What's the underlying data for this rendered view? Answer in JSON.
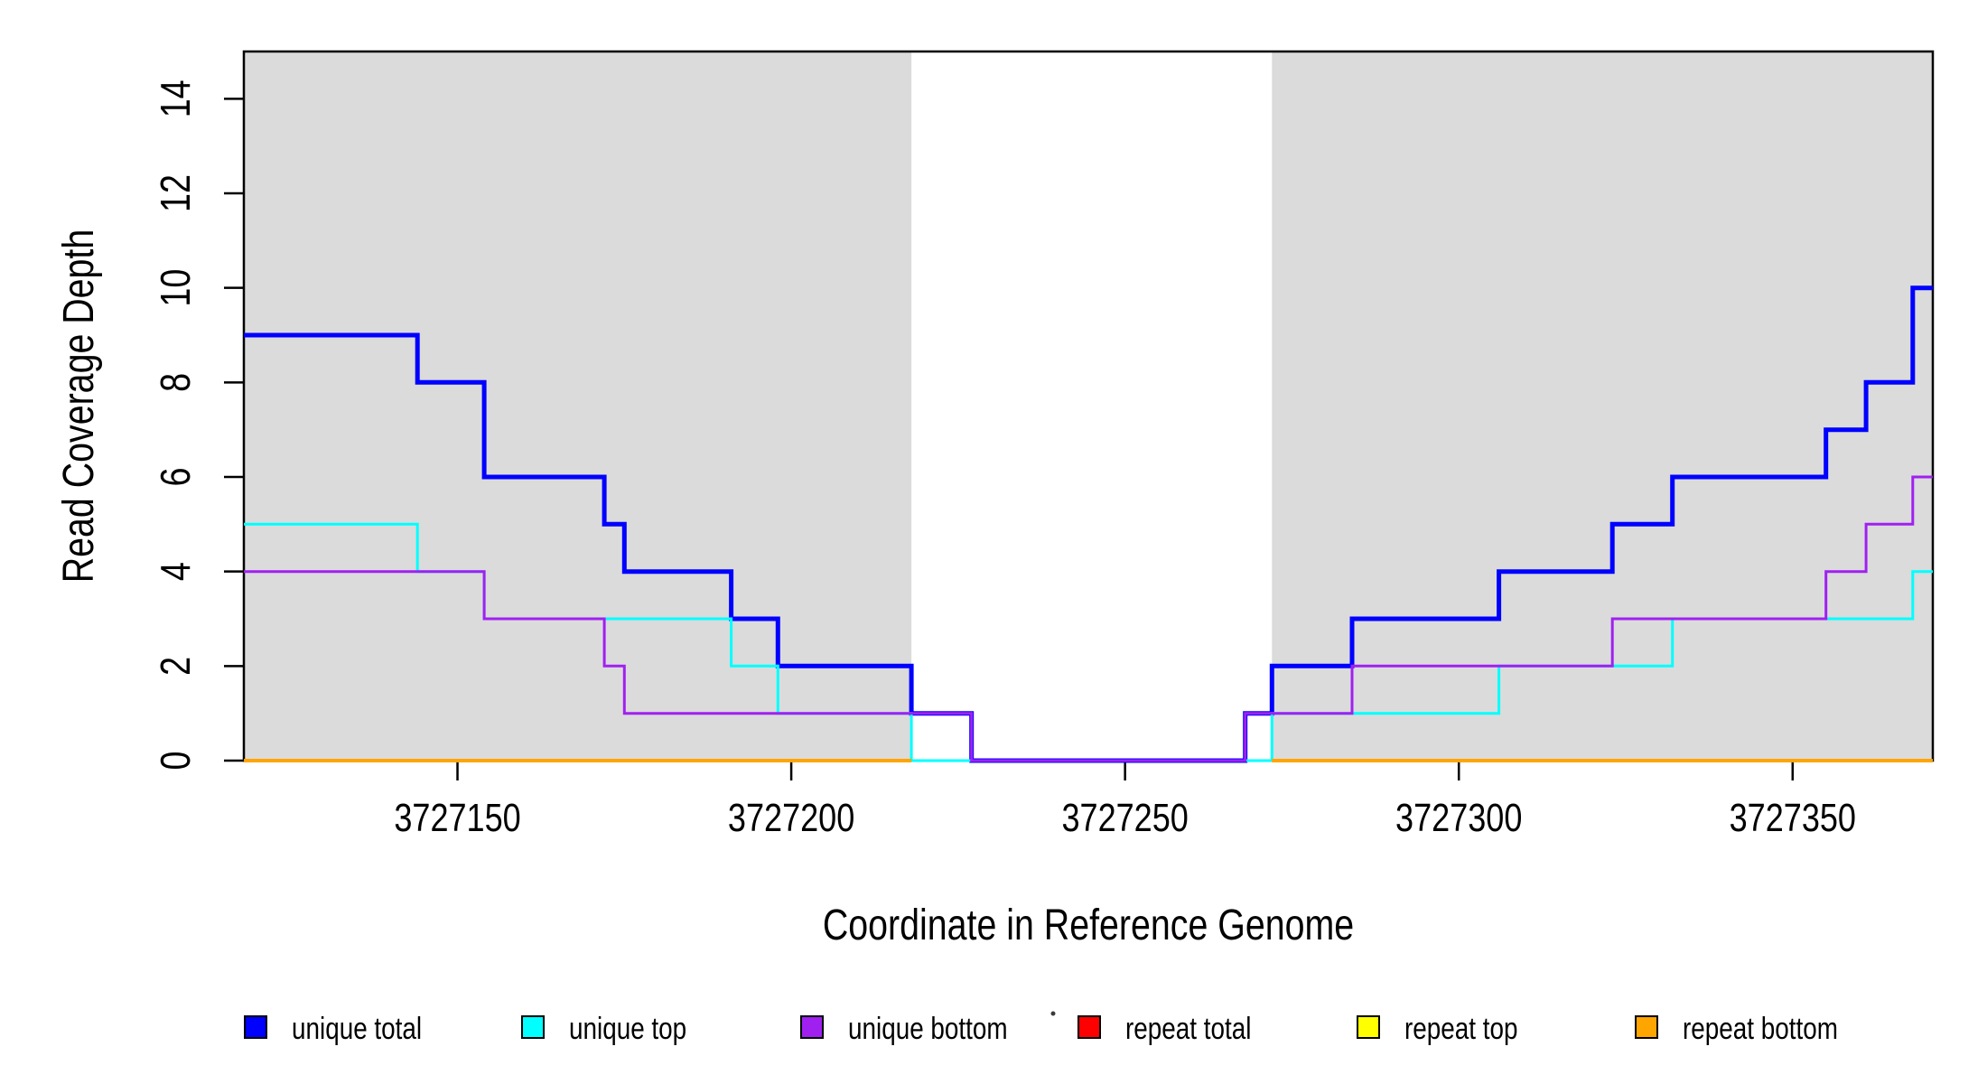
{
  "figure": {
    "background": "#ffffff",
    "panel_shade_color": "#dbdbdb",
    "frame_color": "#000000"
  },
  "axes": {
    "x": {
      "title": "Coordinate in Reference Genome",
      "ticks": [
        3727150,
        3727200,
        3727250,
        3727300,
        3727350
      ],
      "tick_labels": [
        "3727150",
        "3727200",
        "3727250",
        "3727300",
        "3727350"
      ]
    },
    "y": {
      "title": "Read Coverage Depth",
      "ticks": [
        0,
        2,
        4,
        6,
        8,
        10,
        12,
        14
      ],
      "tick_labels": [
        "0",
        "2",
        "4",
        "6",
        "8",
        "10",
        "12",
        "14"
      ]
    }
  },
  "chart_data": {
    "type": "line",
    "step": true,
    "title": "",
    "xlabel": "Coordinate in Reference Genome",
    "ylabel": "Read Coverage Depth",
    "xlim": [
      3727118,
      3727371
    ],
    "ylim": [
      0,
      15
    ],
    "grid": false,
    "legend_position": "bottom",
    "shaded_regions": [
      {
        "name": "left-flank",
        "x0": 3727118,
        "x1": 3727218,
        "color": "#dbdbdb"
      },
      {
        "name": "right-flank",
        "x0": 3727272,
        "x1": 3727371,
        "color": "#dbdbdb"
      }
    ],
    "series": [
      {
        "name": "unique total",
        "color": "#0000ff",
        "width": 5,
        "steps": [
          [
            3727118,
            9
          ],
          [
            3727144,
            8
          ],
          [
            3727154,
            6
          ],
          [
            3727172,
            5
          ],
          [
            3727175,
            4
          ],
          [
            3727191,
            3
          ],
          [
            3727198,
            2
          ],
          [
            3727218,
            1
          ],
          [
            3727227,
            0
          ],
          [
            3727268,
            1
          ],
          [
            3727272,
            2
          ],
          [
            3727284,
            3
          ],
          [
            3727306,
            4
          ],
          [
            3727323,
            5
          ],
          [
            3727332,
            6
          ],
          [
            3727355,
            7
          ],
          [
            3727361,
            8
          ],
          [
            3727368,
            10
          ]
        ],
        "end": 3727371
      },
      {
        "name": "unique top",
        "color": "#00ffff",
        "width": 3,
        "steps": [
          [
            3727118,
            5
          ],
          [
            3727144,
            4
          ],
          [
            3727154,
            3
          ],
          [
            3727191,
            2
          ],
          [
            3727198,
            1
          ],
          [
            3727218,
            0
          ],
          [
            3727272,
            1
          ],
          [
            3727306,
            2
          ],
          [
            3727332,
            3
          ],
          [
            3727368,
            4
          ]
        ],
        "end": 3727371
      },
      {
        "name": "unique bottom",
        "color": "#a020f0",
        "width": 3,
        "steps": [
          [
            3727118,
            4
          ],
          [
            3727154,
            3
          ],
          [
            3727172,
            2
          ],
          [
            3727175,
            1
          ],
          [
            3727227,
            0
          ],
          [
            3727268,
            1
          ],
          [
            3727284,
            2
          ],
          [
            3727323,
            3
          ],
          [
            3727355,
            4
          ],
          [
            3727361,
            5
          ],
          [
            3727368,
            6
          ]
        ],
        "end": 3727371
      },
      {
        "name": "repeat total",
        "color": "#ff0000",
        "width": 3,
        "segments": [
          {
            "x0": 3727118,
            "x1": 3727218,
            "value": 0
          },
          {
            "x0": 3727272,
            "x1": 3727371,
            "value": 0
          }
        ]
      },
      {
        "name": "repeat top",
        "color": "#ffff00",
        "width": 3,
        "segments": [
          {
            "x0": 3727118,
            "x1": 3727218,
            "value": 0
          },
          {
            "x0": 3727272,
            "x1": 3727371,
            "value": 0
          }
        ]
      },
      {
        "name": "repeat bottom",
        "color": "#ffa500",
        "width": 4,
        "segments": [
          {
            "x0": 3727118,
            "x1": 3727218,
            "value": 0
          },
          {
            "x0": 3727272,
            "x1": 3727371,
            "value": 0
          }
        ]
      }
    ],
    "legend": [
      {
        "label": "unique total",
        "color": "#0000ff"
      },
      {
        "label": "unique top",
        "color": "#00ffff"
      },
      {
        "label": "unique bottom",
        "color": "#a020f0"
      },
      {
        "label": "repeat total",
        "color": "#ff0000"
      },
      {
        "label": "repeat top",
        "color": "#ffff00"
      },
      {
        "label": "repeat bottom",
        "color": "#ffa500"
      }
    ]
  }
}
